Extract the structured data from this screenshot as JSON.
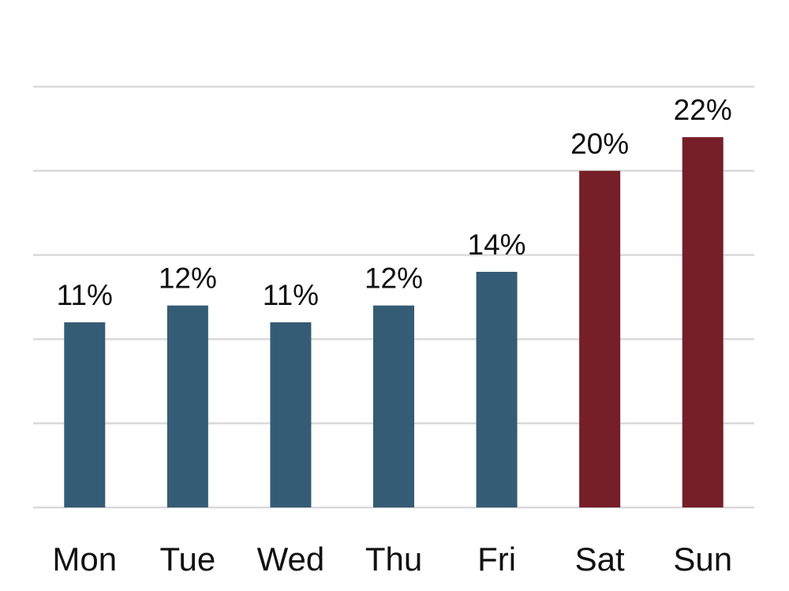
{
  "chart_data": {
    "type": "bar",
    "categories": [
      "Mon",
      "Tue",
      "Wed",
      "Thu",
      "Fri",
      "Sat",
      "Sun"
    ],
    "values": [
      11,
      12,
      11,
      12,
      14,
      20,
      22
    ],
    "value_labels": [
      "11%",
      "12%",
      "11%",
      "12%",
      "14%",
      "20%",
      "22%"
    ],
    "unit": "%",
    "ylim": [
      0,
      25
    ],
    "grid_step": 5,
    "grid": true,
    "legend": "none",
    "colors": {
      "weekday": "#345c75",
      "weekend": "#761f29",
      "grid": "#d9d9d9"
    },
    "bar_colors": [
      "weekday",
      "weekday",
      "weekday",
      "weekday",
      "weekday",
      "weekend",
      "weekend"
    ]
  }
}
